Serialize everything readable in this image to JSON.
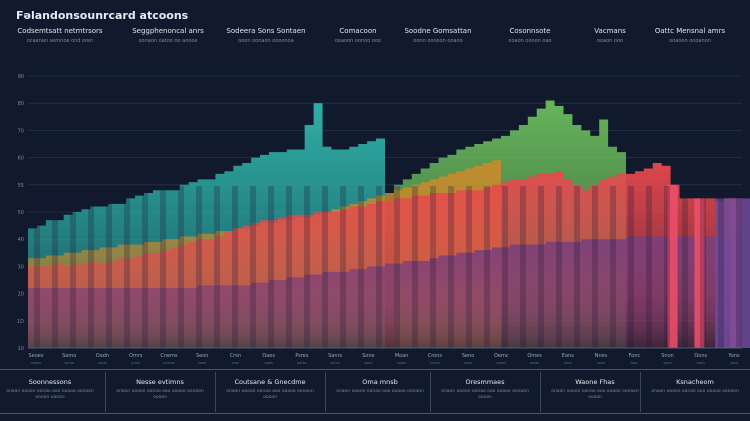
{
  "title": "Fəlandonsounrcard atcoons",
  "columns": [
    {
      "head": "Codsemtsatt netmtrsors",
      "sub": "ocaanan semnoe ond oren"
    },
    {
      "head": "Seggphenoncal anrs",
      "sub": "oonaon oatoo oo aoooe"
    },
    {
      "head": "Sodeera Sons Sontaen",
      "sub": "ooon oonaon oooonoa"
    },
    {
      "head": "Comacoon",
      "sub": "ooaoon oonoo ooo"
    },
    {
      "head": "Soodne Gomsattan",
      "sub": "oonn ooooon ooaoo"
    },
    {
      "head": "Cosonnsote",
      "sub": "ooaon oooon oao"
    },
    {
      "head": "Vacmans",
      "sub": "ooaon ooo"
    },
    {
      "head": "Oattc Mensnal amrs",
      "sub": "ooaoon oooanon"
    }
  ],
  "footer": [
    {
      "title": "Soonnessons",
      "desc": "onaon oooon oonao ooo ooaoo oonaon oooon oaoon"
    },
    {
      "title": "Nesse evtimns",
      "desc": "onaon oooon oonao ooo ooaoo oonaon oooon"
    },
    {
      "title": "Coutsane & Gnecdme",
      "desc": "onaon oooon oonao ooo ooaoo oonaon oooon"
    },
    {
      "title": "Oma mnsb",
      "desc": "onaon oooon oonao ooo ooaoo oonaon"
    },
    {
      "title": "Oresmmaes",
      "desc": "onaon oooon oonao ooo ooaoo oonaon oooon"
    },
    {
      "title": "Waone Fhas",
      "desc": "onaon oooon oonao ooo ooaoo oonaon oooon"
    },
    {
      "title": "Ksnacheom",
      "desc": "onaon oooon oonao ooo ooaoo oonaon"
    }
  ],
  "chart_data": {
    "type": "area",
    "title": "Fəlandonsounrcard atcoons",
    "xlabel": "",
    "ylabel": "",
    "ylim": [
      0,
      100
    ],
    "yticks": [
      "10",
      "1D",
      "20",
      "30",
      "40",
      "50",
      "55",
      "60",
      "70",
      "80",
      "90"
    ],
    "x": [
      0,
      1,
      2,
      3,
      4,
      5,
      6,
      7,
      8,
      9,
      10,
      11,
      12,
      13,
      14,
      15,
      16,
      17,
      18,
      19,
      20,
      21,
      22,
      23,
      24,
      25,
      26,
      27,
      28,
      29,
      30,
      31,
      32,
      33,
      34,
      35,
      36,
      37,
      38,
      39,
      40,
      41,
      42,
      43,
      44,
      45,
      46,
      47,
      48,
      49,
      50,
      51,
      52,
      53,
      54,
      55,
      56,
      57,
      58,
      59,
      60,
      61,
      62,
      63,
      64,
      65,
      66,
      67,
      68,
      69,
      70,
      71,
      72,
      73,
      74,
      75,
      76,
      77,
      78,
      79,
      80
    ],
    "x_tick_labels": [
      "Seoes",
      "Semo",
      "Oadn",
      "Omrs",
      "Cnems",
      "Seon",
      "Crsn",
      "Oaes",
      "Psres",
      "Sanrs",
      "Sone",
      "Moan",
      "Crons",
      "Seno",
      "Oemc",
      "Omes",
      "Eans",
      "Nnes",
      "Fonc",
      "Snon",
      "Oons",
      "Yons"
    ],
    "series": [
      {
        "name": "",
        "color": "#2fb7ad",
        "values": [
          44,
          45,
          47,
          47,
          49,
          50,
          51,
          52,
          52,
          53,
          53,
          55,
          56,
          57,
          58,
          58,
          58,
          60,
          61,
          62,
          62,
          64,
          65,
          67,
          68,
          70,
          71,
          72,
          72,
          73,
          73,
          82,
          90,
          74,
          73,
          73,
          74,
          75,
          76,
          77,
          77,
          null,
          null,
          null,
          null,
          null,
          null,
          null,
          null,
          null,
          null,
          null,
          null,
          null,
          null,
          null,
          null,
          null,
          null,
          null,
          null,
          null,
          null,
          null,
          null,
          null,
          null,
          null,
          null,
          null,
          null,
          null,
          null,
          null,
          null,
          null,
          null,
          null,
          null,
          null,
          null
        ]
      },
      {
        "name": "",
        "color": "#6bbd5c",
        "values": [
          null,
          null,
          null,
          null,
          null,
          null,
          null,
          null,
          null,
          null,
          null,
          null,
          null,
          null,
          null,
          null,
          null,
          null,
          null,
          null,
          null,
          null,
          null,
          null,
          null,
          null,
          null,
          null,
          null,
          null,
          null,
          null,
          null,
          null,
          null,
          null,
          null,
          null,
          null,
          null,
          null,
          60,
          62,
          64,
          66,
          68,
          70,
          71,
          73,
          74,
          75,
          76,
          77,
          78,
          80,
          82,
          85,
          88,
          91,
          89,
          86,
          82,
          80,
          78,
          84,
          74,
          72,
          73,
          null,
          null,
          null,
          null,
          null,
          null,
          null,
          null,
          null,
          null,
          null,
          null,
          null
        ]
      },
      {
        "name": "",
        "color": "#c98a2b",
        "values": [
          33,
          33,
          34,
          34,
          35,
          35,
          36,
          36,
          37,
          37,
          38,
          38,
          38,
          39,
          39,
          40,
          40,
          41,
          41,
          42,
          42,
          43,
          43,
          44,
          44,
          45,
          46,
          46,
          47,
          47,
          48,
          48,
          49,
          50,
          51,
          52,
          53,
          54,
          55,
          56,
          57,
          58,
          59,
          60,
          61,
          62,
          63,
          64,
          65,
          66,
          67,
          68,
          69,
          70,
          null,
          null,
          null,
          null,
          null,
          null,
          null,
          null,
          null,
          null,
          null,
          null,
          null,
          null,
          null,
          null,
          null,
          null,
          null,
          null,
          null,
          null,
          null,
          null,
          null,
          null,
          null
        ]
      },
      {
        "name": "",
        "color": "#e8484e",
        "values": [
          30,
          30,
          30,
          31,
          30,
          31,
          31,
          32,
          31,
          32,
          33,
          33,
          34,
          35,
          35,
          36,
          37,
          38,
          39,
          40,
          40,
          41,
          43,
          44,
          45,
          46,
          47,
          47,
          48,
          49,
          49,
          49,
          50,
          50,
          50,
          51,
          52,
          52,
          53,
          54,
          54,
          55,
          55,
          56,
          56,
          57,
          57,
          57,
          58,
          58,
          58,
          59,
          60,
          61,
          62,
          62,
          63,
          64,
          64,
          65,
          62,
          60,
          58,
          60,
          62,
          63,
          64,
          64,
          65,
          66,
          68,
          67,
          60,
          55,
          55,
          55,
          55,
          54,
          55,
          55,
          55
        ]
      },
      {
        "name": "",
        "color": "#7b3f7a",
        "values": [
          22,
          22,
          22,
          22,
          22,
          22,
          22,
          22,
          22,
          22,
          22,
          22,
          22,
          22,
          22,
          22,
          22,
          22,
          22,
          23,
          23,
          23,
          23,
          23,
          23,
          24,
          24,
          25,
          25,
          26,
          26,
          27,
          27,
          28,
          28,
          28,
          29,
          29,
          30,
          30,
          31,
          31,
          32,
          32,
          32,
          33,
          34,
          34,
          35,
          35,
          36,
          36,
          37,
          37,
          38,
          38,
          38,
          38,
          39,
          39,
          39,
          39,
          40,
          40,
          40,
          40,
          40,
          41,
          41,
          41,
          41,
          41,
          41,
          41,
          41,
          41,
          41,
          41,
          41,
          41,
          41
        ]
      }
    ]
  }
}
